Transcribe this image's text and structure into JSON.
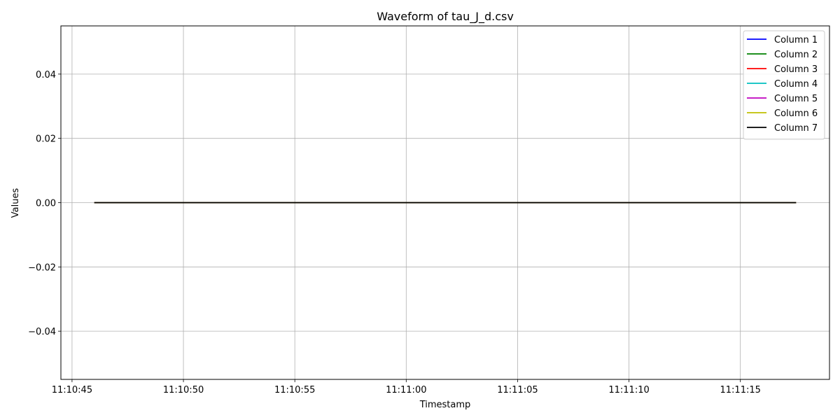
{
  "chart_data": {
    "type": "line",
    "title": "Waveform of tau_J_d.csv",
    "xlabel": "Timestamp",
    "ylabel": "Values",
    "x_start": "11:10:46",
    "x_end": "11:11:17.5",
    "xlim": [
      "11:10:44.5",
      "11:11:19"
    ],
    "ylim": [
      -0.055,
      0.055
    ],
    "x_ticks": [
      "11:10:45",
      "11:10:50",
      "11:10:55",
      "11:11:00",
      "11:11:05",
      "11:11:10",
      "11:11:15"
    ],
    "y_ticks": [
      0.04,
      0.02,
      0.0,
      -0.02,
      -0.04
    ],
    "y_tick_labels": [
      "0.04",
      "0.02",
      "0.00",
      "−0.02",
      "−0.04"
    ],
    "grid": true,
    "legend_position": "top-right",
    "series": [
      {
        "name": "Column 1",
        "color": "#0000ff",
        "values": [
          0,
          0
        ]
      },
      {
        "name": "Column 2",
        "color": "#008000",
        "values": [
          0,
          0
        ]
      },
      {
        "name": "Column 3",
        "color": "#ff0000",
        "values": [
          0,
          0
        ]
      },
      {
        "name": "Column 4",
        "color": "#00bfbf",
        "values": [
          0,
          0
        ]
      },
      {
        "name": "Column 5",
        "color": "#bf00bf",
        "values": [
          0,
          0
        ]
      },
      {
        "name": "Column 6",
        "color": "#bfbf00",
        "values": [
          0,
          0
        ]
      },
      {
        "name": "Column 7",
        "color": "#000000",
        "values": [
          0,
          0
        ]
      }
    ]
  }
}
